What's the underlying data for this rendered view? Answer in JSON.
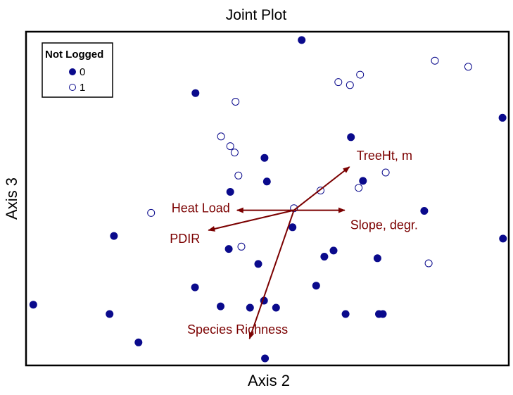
{
  "chart_data": {
    "type": "scatter",
    "title": "Joint Plot",
    "xlabel": "Axis 2",
    "ylabel": "Axis 3",
    "xlim": [
      0,
      100
    ],
    "ylim": [
      0,
      100
    ],
    "grid": false,
    "legend": {
      "title": "Not Logged",
      "placement": "top-left",
      "entries": [
        "0",
        "1"
      ]
    },
    "colors": {
      "filled": "#0a0a8c",
      "open_edge": "#0a0a8c",
      "vector": "#7b0000"
    },
    "series": [
      {
        "name": "0",
        "marker": "filled-circle",
        "points": [
          [
            57.1,
            97.5
          ],
          [
            35.1,
            81.6
          ],
          [
            67.3,
            68.4
          ],
          [
            98.7,
            74.2
          ],
          [
            49.4,
            62.2
          ],
          [
            49.9,
            55.1
          ],
          [
            42.3,
            52.0
          ],
          [
            69.8,
            55.3
          ],
          [
            82.5,
            46.3
          ],
          [
            55.2,
            41.4
          ],
          [
            18.2,
            38.8
          ],
          [
            98.8,
            38.0
          ],
          [
            42.0,
            34.9
          ],
          [
            63.7,
            34.4
          ],
          [
            61.8,
            32.6
          ],
          [
            72.8,
            32.1
          ],
          [
            48.1,
            30.4
          ],
          [
            60.1,
            23.9
          ],
          [
            35.0,
            23.4
          ],
          [
            1.5,
            18.2
          ],
          [
            40.3,
            17.7
          ],
          [
            49.3,
            19.4
          ],
          [
            51.8,
            17.3
          ],
          [
            46.4,
            17.3
          ],
          [
            17.3,
            15.4
          ],
          [
            66.2,
            15.4
          ],
          [
            73.1,
            15.4
          ],
          [
            73.9,
            15.4
          ],
          [
            23.3,
            6.9
          ],
          [
            49.5,
            2.1
          ]
        ]
      },
      {
        "name": "1",
        "marker": "open-circle",
        "points": [
          [
            84.7,
            91.3
          ],
          [
            91.6,
            89.5
          ],
          [
            69.2,
            87.1
          ],
          [
            64.7,
            84.9
          ],
          [
            67.1,
            84.0
          ],
          [
            43.4,
            79.0
          ],
          [
            40.4,
            68.6
          ],
          [
            42.3,
            65.7
          ],
          [
            43.2,
            63.8
          ],
          [
            44.0,
            56.9
          ],
          [
            74.5,
            57.8
          ],
          [
            61.0,
            52.4
          ],
          [
            68.9,
            53.2
          ],
          [
            55.5,
            47.1
          ],
          [
            25.9,
            45.7
          ],
          [
            44.6,
            35.6
          ],
          [
            83.4,
            30.6
          ]
        ]
      }
    ],
    "biplot_vectors": {
      "origin": [
        55.5,
        46.5
      ],
      "vectors": [
        {
          "label": "TreeHt, m",
          "end": [
            67.0,
            59.5
          ]
        },
        {
          "label": "Heat Load",
          "end": [
            43.7,
            46.5
          ]
        },
        {
          "label": "Slope, degr.",
          "end": [
            66.0,
            46.5
          ]
        },
        {
          "label": "PDIR",
          "end": [
            37.8,
            40.5
          ]
        },
        {
          "label": "Species Richness",
          "end": [
            46.3,
            8.0
          ]
        }
      ]
    }
  }
}
